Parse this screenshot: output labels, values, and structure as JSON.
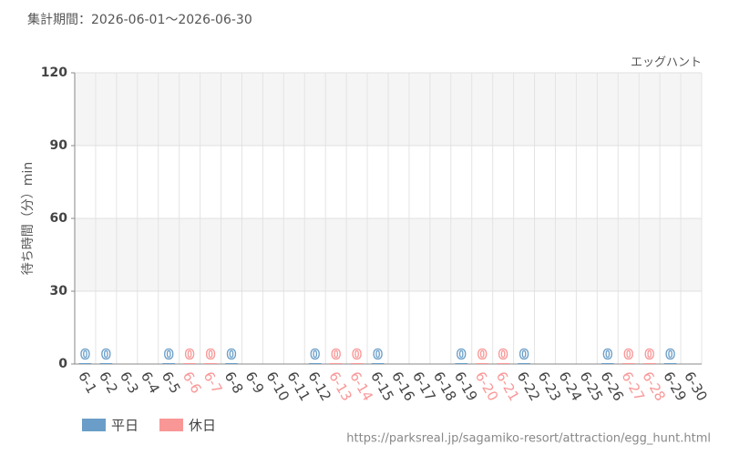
{
  "chart_data": {
    "type": "bar",
    "title": "集計期間：2026-06-01～2026-06-30",
    "subtitle": "エッグハント",
    "y_label": "待ち時間（分）min",
    "source": "https://parksreal.jp/sagamiko-resort/attraction/egg_hunt.html",
    "categories": [
      "6-1",
      "6-2",
      "6-3",
      "6-4",
      "6-5",
      "6-6",
      "6-7",
      "6-8",
      "6-9",
      "6-10",
      "6-11",
      "6-12",
      "6-13",
      "6-14",
      "6-15",
      "6-16",
      "6-17",
      "6-18",
      "6-19",
      "6-20",
      "6-21",
      "6-22",
      "6-23",
      "6-24",
      "6-25",
      "6-26",
      "6-27",
      "6-28",
      "6-29",
      "6-30"
    ],
    "series": [
      {
        "name": "平日",
        "color": "#6a9ec8",
        "values": [
          0,
          0,
          null,
          null,
          0,
          null,
          null,
          0,
          null,
          null,
          null,
          0,
          null,
          null,
          0,
          null,
          null,
          null,
          0,
          null,
          null,
          0,
          null,
          null,
          null,
          0,
          null,
          null,
          0,
          null
        ]
      },
      {
        "name": "休日",
        "color": "#f99797",
        "values": [
          null,
          null,
          null,
          null,
          null,
          0,
          0,
          null,
          null,
          null,
          null,
          null,
          0,
          0,
          null,
          null,
          null,
          null,
          null,
          0,
          0,
          null,
          null,
          null,
          null,
          null,
          0,
          0,
          null,
          null
        ]
      }
    ],
    "ylim": [
      0,
      120
    ],
    "yticks": [
      0,
      30,
      60,
      90,
      120
    ],
    "grid": true
  }
}
